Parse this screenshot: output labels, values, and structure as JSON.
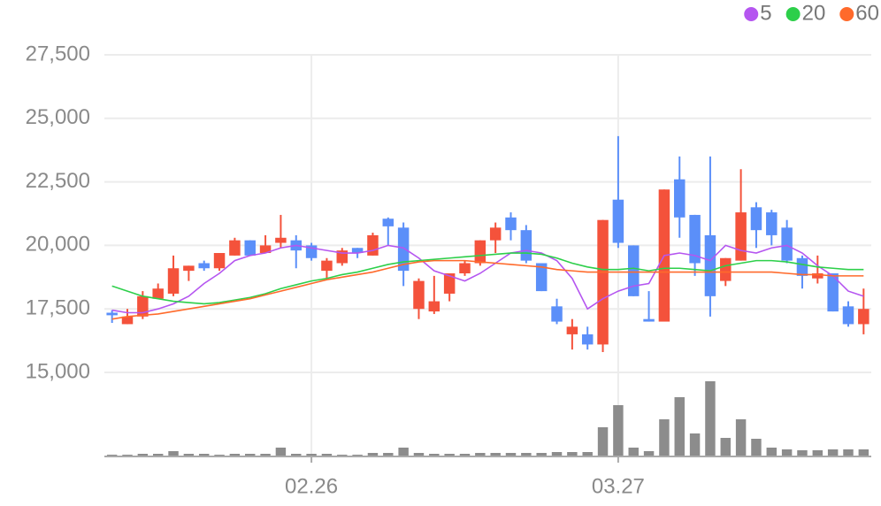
{
  "chart_data": {
    "type": "candlestick",
    "categories": [
      null,
      null,
      null,
      null,
      null,
      null,
      null,
      null,
      null,
      null,
      null,
      null,
      null,
      "02.26",
      null,
      null,
      null,
      null,
      null,
      null,
      null,
      null,
      null,
      null,
      null,
      null,
      null,
      null,
      null,
      null,
      null,
      null,
      null,
      "03.27",
      null,
      null,
      null,
      null,
      null,
      null,
      null,
      null,
      null,
      null,
      null,
      null,
      null,
      null,
      null,
      null
    ],
    "open": [
      17350,
      16900,
      17200,
      17900,
      18100,
      19000,
      19300,
      19100,
      19600,
      20200,
      19700,
      20100,
      20200,
      20000,
      19000,
      19300,
      19900,
      19600,
      21050,
      20700,
      17500,
      17400,
      18100,
      18900,
      19300,
      20200,
      21100,
      20600,
      19300,
      17600,
      16500,
      16500,
      16100,
      21800,
      20000,
      17100,
      17000,
      22600,
      21200,
      20400,
      18600,
      19400,
      21500,
      21300,
      20700,
      19500,
      18700,
      18900,
      17600,
      16900
    ],
    "high": [
      17450,
      17500,
      18200,
      18500,
      19600,
      19200,
      19400,
      19700,
      20300,
      20200,
      20400,
      21200,
      20400,
      20100,
      19500,
      19900,
      19900,
      20500,
      21100,
      20900,
      18700,
      18800,
      18900,
      19400,
      20200,
      20900,
      21300,
      20800,
      19300,
      17900,
      17100,
      16800,
      21000,
      24300,
      20000,
      18200,
      22200,
      23500,
      21200,
      23500,
      19500,
      23000,
      21700,
      21400,
      21000,
      19600,
      19600,
      18900,
      17800,
      18300
    ],
    "low": [
      16950,
      16900,
      17100,
      17900,
      18000,
      18600,
      19000,
      19000,
      19600,
      19600,
      19700,
      19900,
      19100,
      19400,
      18700,
      19200,
      19500,
      19600,
      20000,
      18400,
      17100,
      17300,
      17800,
      18800,
      19200,
      19700,
      20200,
      19300,
      18200,
      16900,
      15900,
      15900,
      15800,
      19900,
      18000,
      17000,
      17000,
      20300,
      18800,
      17200,
      18400,
      19400,
      19900,
      20000,
      19300,
      18300,
      18500,
      17400,
      16800,
      16500
    ],
    "close": [
      17250,
      17200,
      18000,
      18300,
      19100,
      19200,
      19100,
      19700,
      20200,
      19600,
      20000,
      20300,
      19800,
      19500,
      19400,
      19800,
      19700,
      20400,
      20750,
      19000,
      18600,
      17800,
      18900,
      19300,
      20200,
      20700,
      20600,
      19400,
      18200,
      17000,
      16800,
      16100,
      21000,
      20100,
      18000,
      17000,
      22200,
      21100,
      19300,
      18000,
      19500,
      21300,
      20600,
      20400,
      19400,
      18800,
      18900,
      17400,
      16900,
      17500
    ],
    "up_color": "#f4523b",
    "down_color": "#5b8ff9",
    "series": [
      {
        "name": "5",
        "color": "#b556f0",
        "values": [
          17450,
          17350,
          17350,
          17500,
          17700,
          18000,
          18500,
          18900,
          19400,
          19600,
          19700,
          19900,
          20000,
          19900,
          19800,
          19700,
          19700,
          19800,
          20000,
          19900,
          19500,
          19000,
          18800,
          18600,
          18900,
          19300,
          19700,
          19800,
          19700,
          19400,
          18700,
          17500,
          17900,
          18200,
          18400,
          18500,
          19600,
          19700,
          19600,
          19400,
          20000,
          19800,
          19700,
          19900,
          20000,
          19700,
          19200,
          18800,
          18200,
          18000
        ]
      },
      {
        "name": "20",
        "color": "#2dcf4a",
        "values": [
          18400,
          18200,
          18000,
          17900,
          17800,
          17750,
          17700,
          17750,
          17850,
          17950,
          18100,
          18300,
          18450,
          18600,
          18700,
          18850,
          18950,
          19100,
          19250,
          19350,
          19400,
          19450,
          19500,
          19550,
          19600,
          19650,
          19700,
          19700,
          19650,
          19500,
          19300,
          19150,
          19050,
          19050,
          19100,
          19000,
          19100,
          19100,
          19050,
          19000,
          19200,
          19300,
          19400,
          19400,
          19350,
          19250,
          19150,
          19100,
          19050,
          19050
        ]
      },
      {
        "name": "60",
        "color": "#ff6a2b",
        "values": [
          17100,
          17200,
          17250,
          17300,
          17400,
          17500,
          17600,
          17700,
          17800,
          17900,
          18050,
          18200,
          18350,
          18500,
          18650,
          18750,
          18850,
          18950,
          19100,
          19250,
          19350,
          19400,
          19400,
          19400,
          19350,
          19300,
          19250,
          19200,
          19150,
          19050,
          19000,
          18950,
          18950,
          18950,
          18950,
          18950,
          18950,
          18950,
          18950,
          18950,
          18950,
          18950,
          18950,
          18950,
          18900,
          18850,
          18850,
          18800,
          18800,
          18800
        ]
      }
    ],
    "volume": [
      2,
      2,
      3,
      3,
      6,
      3,
      3,
      2,
      3,
      3,
      3,
      10,
      3,
      3,
      3,
      2,
      2,
      4,
      4,
      10,
      4,
      3,
      3,
      3,
      4,
      4,
      4,
      4,
      4,
      5,
      5,
      5,
      33,
      58,
      10,
      6,
      42,
      67,
      26,
      85,
      21,
      42,
      20,
      10,
      8,
      7,
      7,
      8,
      8,
      8
    ],
    "volume_color": "#8c8c8c",
    "ylim": [
      15000,
      27500
    ],
    "yticks": [
      {
        "value": 15000,
        "label": "15,000"
      },
      {
        "value": 17500,
        "label": "17,500"
      },
      {
        "value": 20000,
        "label": "20,000"
      },
      {
        "value": 22500,
        "label": "22,500"
      },
      {
        "value": 25000,
        "label": "25,000"
      },
      {
        "value": 27500,
        "label": "27,500"
      }
    ],
    "grid": true
  }
}
